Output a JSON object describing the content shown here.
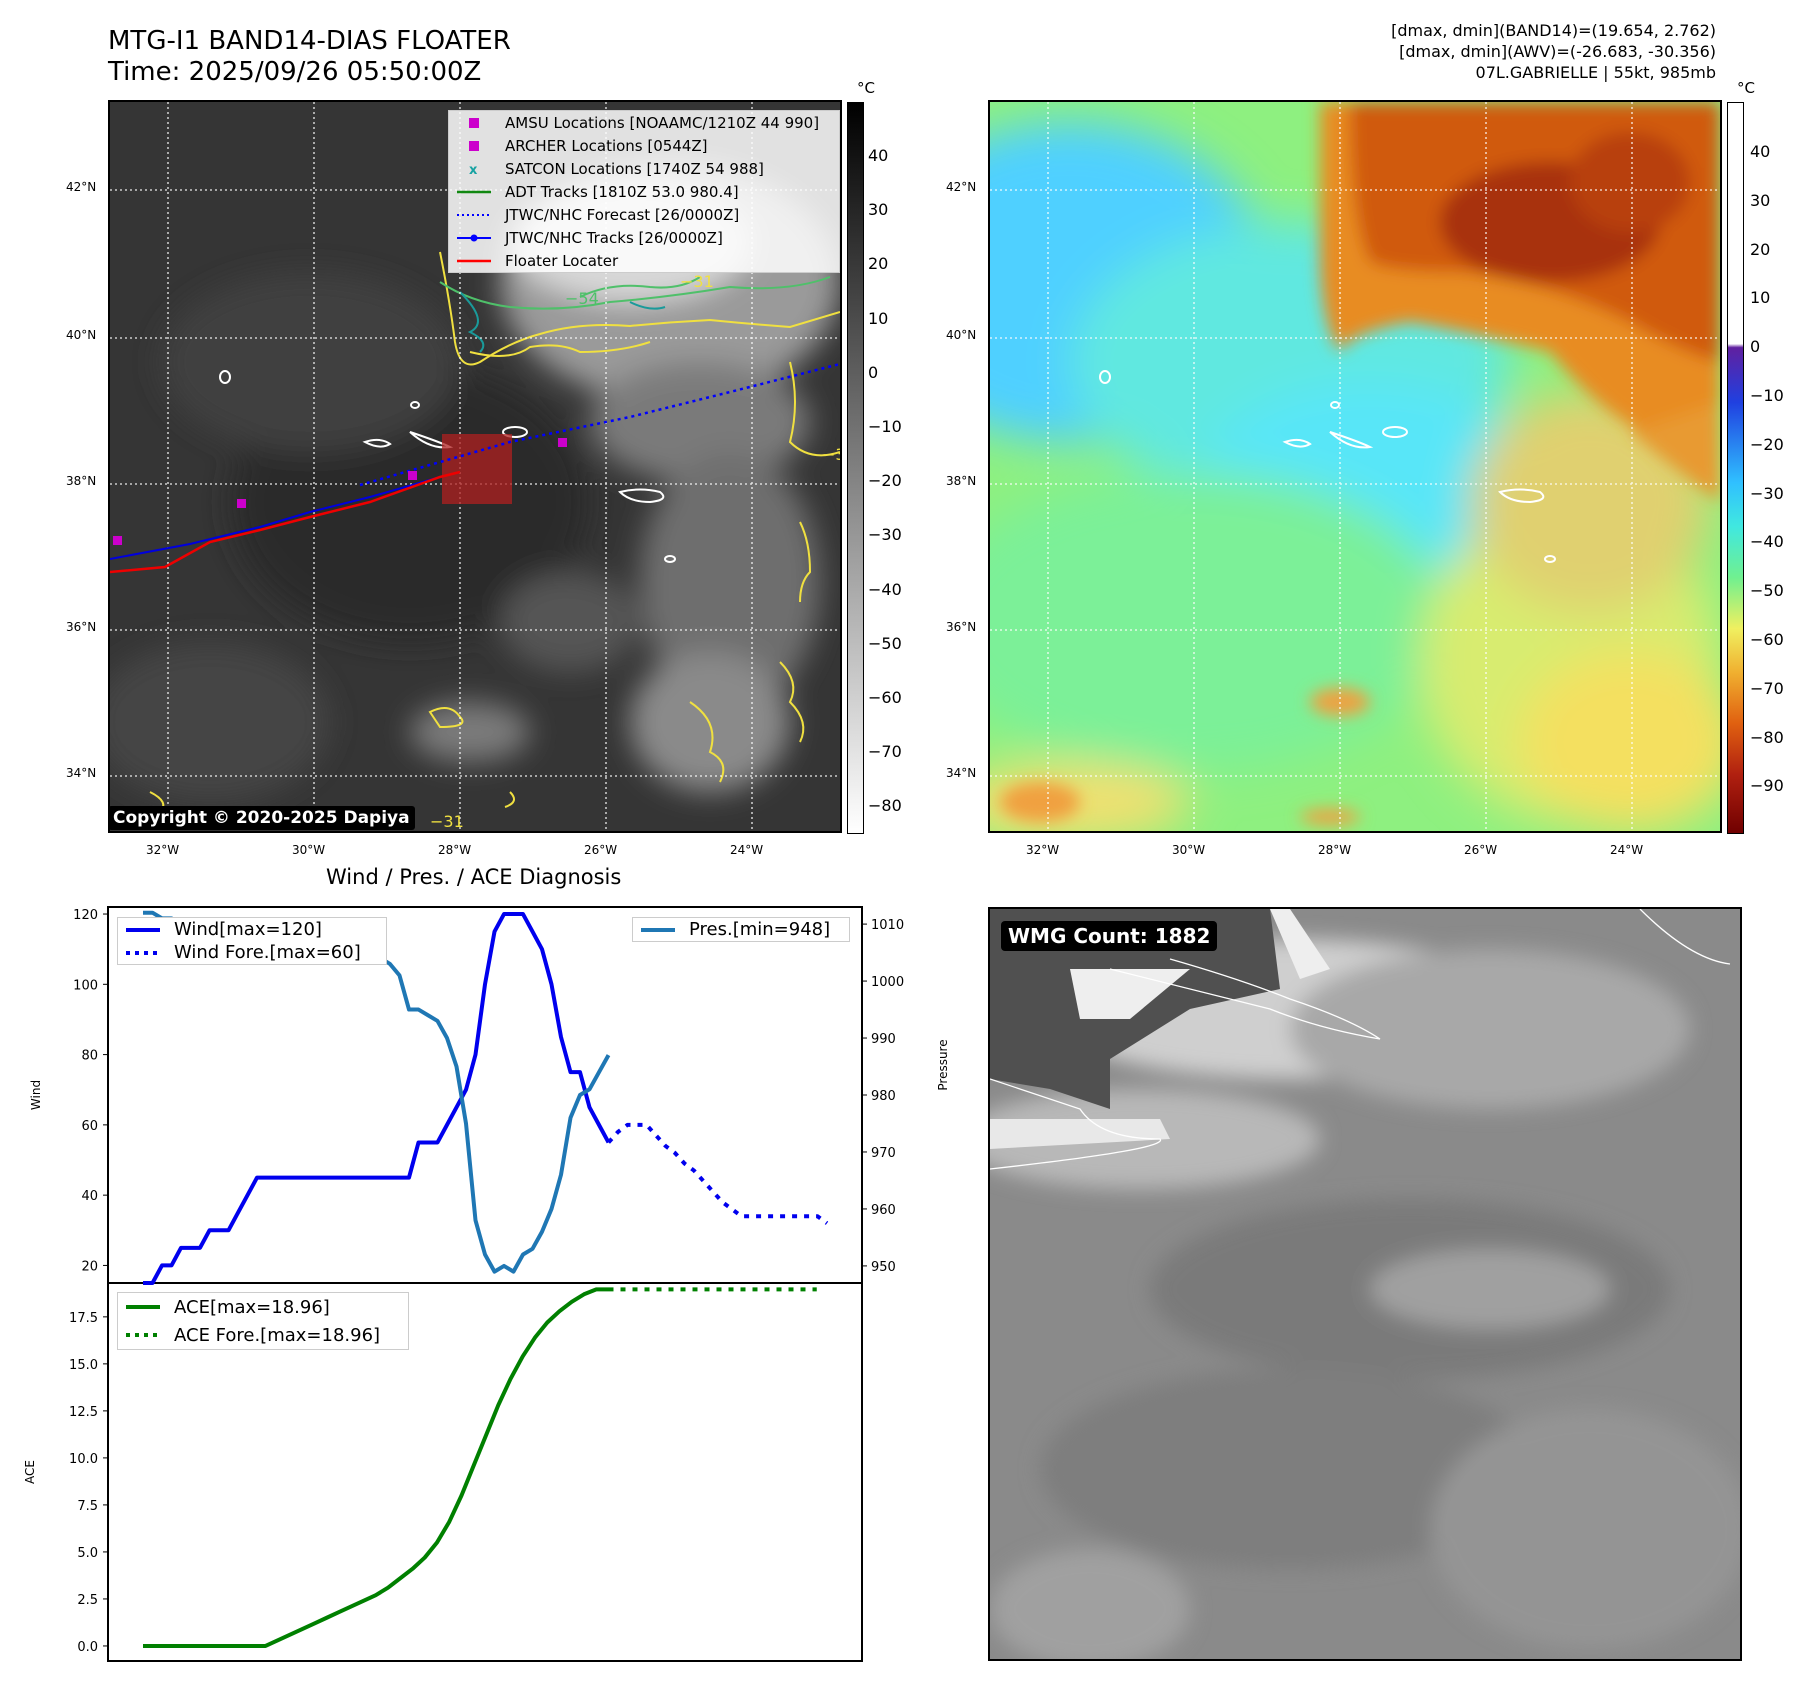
{
  "header": {
    "title_line1": "MTG-I1 BAND14-DIAS FLOATER",
    "title_line2": "Time: 2025/09/26 05:50:00Z",
    "info_line1": "[dmax, dmin](BAND14)=(19.654, 2.762)",
    "info_line2": "[dmax, dmin](AWV)=(-26.683, -30.356)",
    "info_line3": "07L.GABRIELLE | 55kt, 985mb"
  },
  "map": {
    "lat_labels": [
      "42°N",
      "40°N",
      "38°N",
      "36°N",
      "34°N"
    ],
    "lon_labels": [
      "32°W",
      "30°W",
      "28°W",
      "26°W",
      "24°W"
    ],
    "unit": "°C",
    "ir_colorbar_ticks": [
      "40",
      "30",
      "20",
      "10",
      "0",
      "−10",
      "−20",
      "−30",
      "−40",
      "−50",
      "−60",
      "−70",
      "−80"
    ],
    "wv_colorbar_ticks": [
      "40",
      "30",
      "20",
      "10",
      "0",
      "−10",
      "−20",
      "−30",
      "−40",
      "−50",
      "−60",
      "−70",
      "−80",
      "−90"
    ],
    "copyright": "Copyright © 2020-2025 Dapiya",
    "contour_labels": [
      "−54",
      "−31",
      "−31",
      "−31"
    ],
    "legend": [
      {
        "label": "AMSU Locations [NOAAMC/1210Z 44 990]",
        "color": "#cc00cc",
        "kind": "square"
      },
      {
        "label": "ARCHER Locations [0544Z]",
        "color": "#cc00cc",
        "kind": "square"
      },
      {
        "label": "SATCON Locations [1740Z 54 988]",
        "color": "#17a2a2",
        "kind": "x"
      },
      {
        "label": "ADT Tracks [1810Z 53.0 980.4]",
        "color": "#118811",
        "kind": "line"
      },
      {
        "label": "JTWC/NHC Forecast [26/0000Z]",
        "color": "#0000ff",
        "kind": "dotted"
      },
      {
        "label": "JTWC/NHC Tracks [26/0000Z]",
        "color": "#0000ff",
        "kind": "line-dot"
      },
      {
        "label": "Floater Locater",
        "color": "#ff0000",
        "kind": "line"
      }
    ]
  },
  "diag_title": "Wind / Pres. / ACE Diagnosis",
  "wmg_label": "WMG Count: 1882",
  "chart_data": [
    {
      "type": "line",
      "title": "Wind / Pres. / ACE Diagnosis",
      "ylabel": "Wind",
      "y2label": "Pressure",
      "ylim": [
        15,
        122
      ],
      "y2lim": [
        947,
        1013
      ],
      "yticks": [
        "120",
        "100",
        "80",
        "60",
        "40",
        "20"
      ],
      "y2ticks": [
        "1010",
        "1000",
        "990",
        "980",
        "970",
        "960",
        "950"
      ],
      "legend_left": [
        "Wind[max=120]",
        "Wind Fore.[max=60]"
      ],
      "legend_right": [
        "Pres.[min=948]"
      ],
      "x_index": [
        0,
        1,
        2,
        3,
        4,
        5,
        6,
        7,
        8,
        9,
        10,
        11,
        12,
        13,
        14,
        15,
        16,
        17,
        18,
        19,
        20,
        21,
        22,
        23,
        24,
        25,
        26,
        27,
        28,
        29,
        30,
        31,
        32,
        33,
        34,
        35,
        36,
        37,
        38,
        39,
        40,
        41,
        42,
        43,
        44,
        45,
        46,
        47,
        48,
        49,
        50,
        51,
        52,
        53,
        54,
        55,
        56,
        57,
        58,
        59,
        60,
        61,
        62,
        63,
        64,
        65,
        66,
        67,
        68,
        69,
        70,
        71,
        72,
        73
      ],
      "series": [
        {
          "name": "Wind",
          "color": "#0000ee",
          "style": "solid",
          "x_start": 0,
          "values": [
            15,
            15,
            20,
            20,
            25,
            25,
            25,
            30,
            30,
            30,
            35,
            40,
            45,
            45,
            45,
            45,
            45,
            45,
            45,
            45,
            45,
            45,
            45,
            45,
            45,
            45,
            45,
            45,
            45,
            55,
            55,
            55,
            60,
            65,
            70,
            80,
            100,
            115,
            120,
            120,
            120,
            115,
            110,
            100,
            85,
            75,
            75,
            65,
            60,
            55
          ]
        },
        {
          "name": "Wind Fore.",
          "color": "#0000ee",
          "style": "dotted",
          "x_start": 49,
          "values": [
            55,
            58,
            60,
            60,
            60,
            57,
            54,
            52,
            49,
            47,
            44,
            41,
            38,
            36,
            34,
            34,
            34,
            34,
            34,
            34,
            34,
            34,
            34,
            32
          ]
        },
        {
          "name": "Pres.",
          "color": "#1f77b4",
          "style": "solid",
          "axis": "right",
          "x_start": 0,
          "values": [
            1012,
            1012,
            1011,
            1011,
            1010,
            1009,
            1008,
            1007,
            1007,
            1007,
            1006,
            1005,
            1004,
            1004,
            1004,
            1004,
            1004,
            1004,
            1004,
            1004,
            1004,
            1004,
            1004,
            1004,
            1004,
            1004,
            1003,
            1001,
            995,
            995,
            994,
            993,
            990,
            985,
            975,
            958,
            952,
            949,
            950,
            949,
            952,
            953,
            956,
            960,
            966,
            976,
            980,
            981,
            984,
            987
          ]
        }
      ]
    },
    {
      "type": "line",
      "ylabel": "ACE",
      "ylim": [
        -0.8,
        19.3
      ],
      "yticks": [
        "17.5",
        "15.0",
        "12.5",
        "10.0",
        "7.5",
        "5.0",
        "2.5",
        "0.0"
      ],
      "legend": [
        "ACE[max=18.96]",
        "ACE Fore.[max=18.96]"
      ],
      "series": [
        {
          "name": "ACE",
          "color": "#008000",
          "style": "solid",
          "x_start": 0,
          "values": [
            0,
            0,
            0,
            0,
            0,
            0,
            0,
            0,
            0,
            0,
            0,
            0.3,
            0.6,
            0.9,
            1.2,
            1.5,
            1.8,
            2.1,
            2.4,
            2.7,
            3.1,
            3.6,
            4.1,
            4.7,
            5.5,
            6.6,
            8.0,
            9.6,
            11.2,
            12.8,
            14.2,
            15.4,
            16.4,
            17.2,
            17.8,
            18.3,
            18.7,
            18.96,
            18.96
          ]
        },
        {
          "name": "ACE Fore.",
          "color": "#008000",
          "style": "dotted",
          "x_start": 38,
          "values": [
            18.96,
            18.96,
            18.96,
            18.96,
            18.96,
            18.96,
            18.96,
            18.96,
            18.96,
            18.96,
            18.96,
            18.96,
            18.96,
            18.96,
            18.96,
            18.96,
            18.96,
            18.96
          ]
        }
      ]
    }
  ]
}
